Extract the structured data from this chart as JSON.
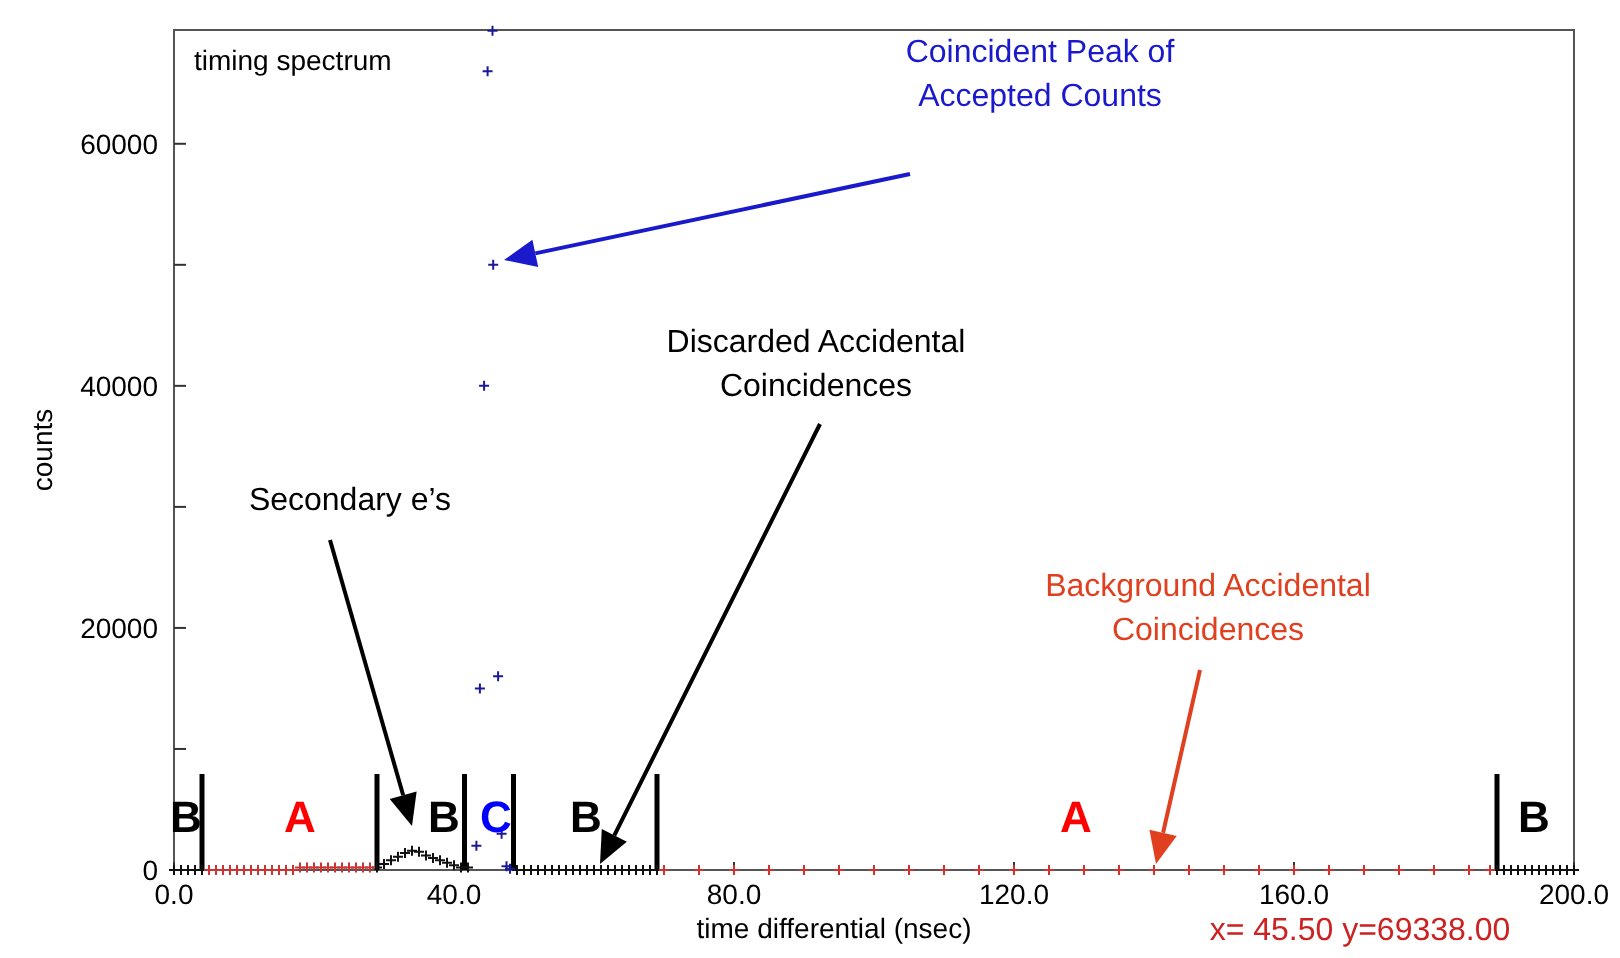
{
  "chart_data": {
    "type": "scatter",
    "title": "timing spectrum",
    "xlabel": "time differential (nsec)",
    "ylabel": "counts",
    "xlim": [
      0,
      200
    ],
    "ylim": [
      0,
      69400
    ],
    "xticks": [
      {
        "value": 0,
        "label": "0.0"
      },
      {
        "value": 40,
        "label": "40.0"
      },
      {
        "value": 80,
        "label": "80.0"
      },
      {
        "value": 120,
        "label": "120.0"
      },
      {
        "value": 160,
        "label": "160.0"
      },
      {
        "value": 200,
        "label": "200.0"
      }
    ],
    "yticks": [
      0,
      {
        "value": 10000,
        "label": null
      },
      20000,
      {
        "value": 30000,
        "label": null
      },
      40000,
      {
        "value": 50000,
        "label": null
      },
      60000
    ],
    "marker": "cross",
    "series": [
      {
        "color": "#111111",
        "x": [
          0,
          1,
          2,
          3,
          4,
          29,
          30,
          31,
          32,
          33,
          34,
          35,
          36,
          37,
          38,
          39,
          40,
          41,
          42,
          49,
          50,
          51,
          52,
          53,
          54,
          55,
          56,
          57,
          58,
          59,
          60,
          61,
          62,
          63,
          64,
          65,
          66,
          67,
          68,
          69,
          189,
          190,
          191,
          192,
          193,
          194,
          195,
          196,
          197,
          198,
          199,
          200
        ],
        "values": [
          0,
          0,
          0,
          0,
          0,
          200,
          500,
          800,
          1100,
          1400,
          1600,
          1500,
          1200,
          1000,
          800,
          600,
          400,
          200,
          200,
          0,
          0,
          0,
          0,
          0,
          0,
          0,
          0,
          0,
          0,
          0,
          0,
          0,
          0,
          0,
          0,
          0,
          0,
          0,
          0,
          0,
          0,
          0,
          0,
          0,
          0,
          0,
          0,
          0,
          0,
          0,
          0,
          0
        ]
      },
      {
        "color": "#cc3333",
        "x": [
          5,
          6,
          7,
          8,
          9,
          10,
          11,
          12,
          13,
          14,
          15,
          16,
          17,
          18,
          19,
          20,
          21,
          22,
          23,
          24,
          25,
          26,
          27,
          28,
          70,
          75,
          80,
          85,
          90,
          95,
          100,
          105,
          110,
          115,
          120,
          125,
          130,
          135,
          140,
          145,
          150,
          155,
          160,
          165,
          170,
          175,
          180,
          185,
          188
        ],
        "values": [
          0,
          0,
          0,
          0,
          0,
          0,
          0,
          0,
          0,
          0,
          0,
          0,
          0,
          200,
          200,
          200,
          200,
          200,
          200,
          200,
          200,
          200,
          200,
          200,
          0,
          0,
          0,
          0,
          0,
          0,
          0,
          0,
          0,
          0,
          0,
          0,
          0,
          0,
          0,
          0,
          0,
          0,
          0,
          0,
          0,
          0,
          0,
          0,
          0
        ]
      },
      {
        "color": "#1a1a99",
        "x": [
          43.2,
          43.7,
          44.3,
          44.8,
          45.5,
          45.6,
          46.3,
          46.8,
          47.5,
          48
        ],
        "values": [
          2000,
          15000,
          40000,
          66000,
          69338,
          50000,
          16000,
          3000,
          300,
          100
        ]
      }
    ],
    "ref_lines": [
      {
        "axis": "x",
        "value": 4,
        "color": "#000000"
      },
      {
        "axis": "x",
        "value": 29,
        "color": "#000000"
      },
      {
        "axis": "x",
        "value": 41.5,
        "color": "#000000"
      },
      {
        "axis": "x",
        "value": 48.5,
        "color": "#000000"
      },
      {
        "axis": "x",
        "value": 69,
        "color": "#000000"
      },
      {
        "axis": "x",
        "value": 189,
        "color": "#000000"
      }
    ],
    "annotations": [
      "Coincident Peak of\nAccepted Counts",
      "Discarded Accidental\nCoincidences",
      "Secondary e’s",
      "Background Accidental\nCoincidences",
      "x=   45.50   y=69338.00",
      "B",
      "A",
      "B",
      "C",
      "B",
      "A",
      "B"
    ]
  }
}
